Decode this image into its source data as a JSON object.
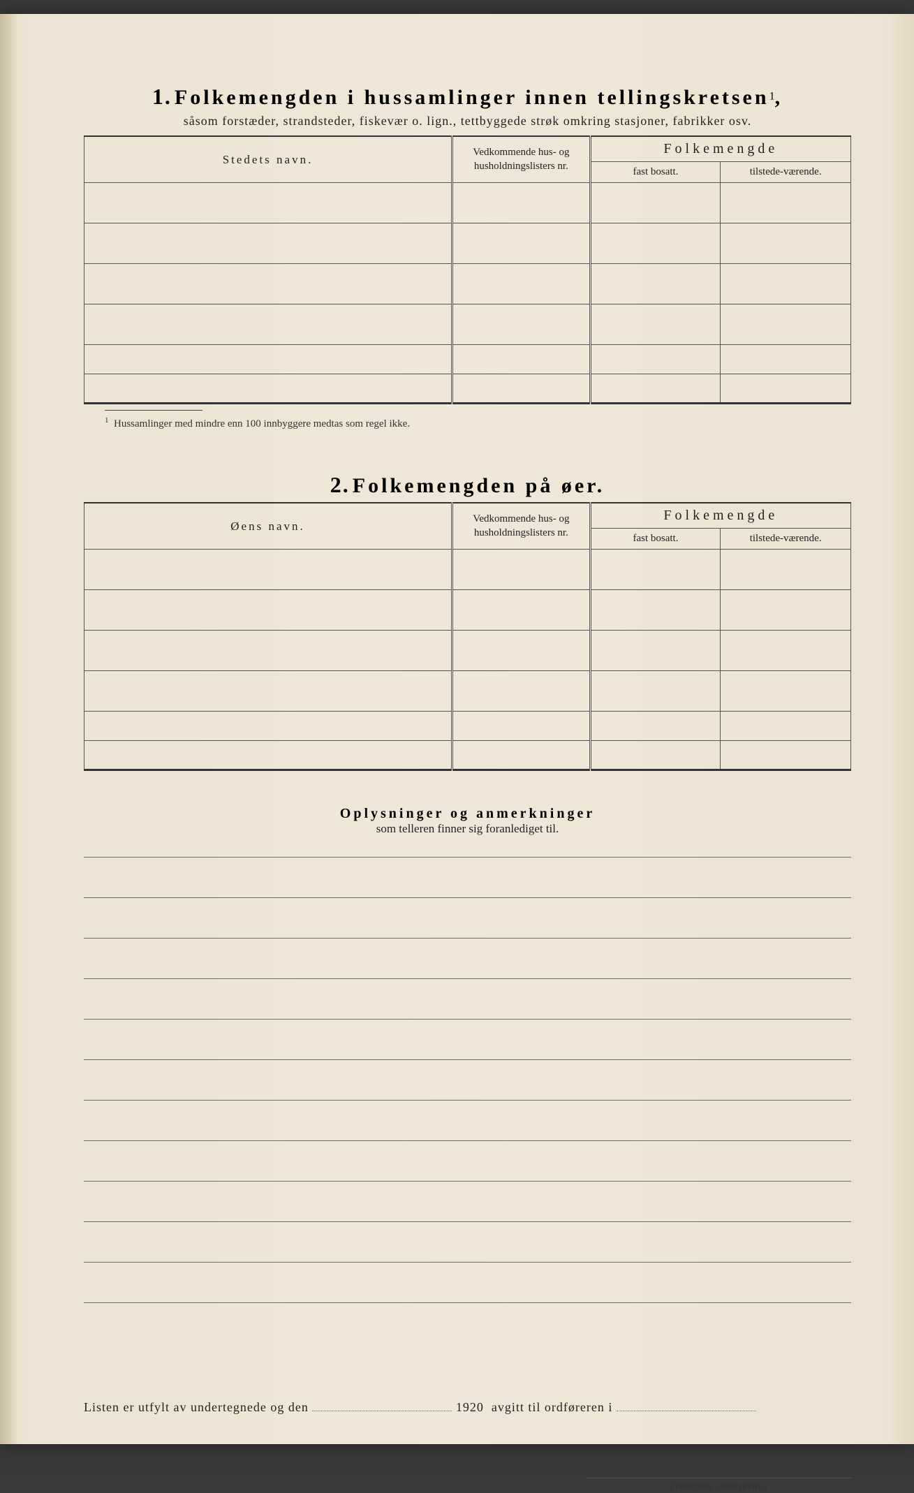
{
  "section1": {
    "number": "1.",
    "title": "Folkemengden i hussamlinger innen tellingskretsen",
    "sup": "1",
    "subtitle": "såsom forstæder, strandsteder, fiskevær o. lign., tettbyggede strøk omkring stasjoner, fabrikker osv.",
    "col_name": "Stedets navn.",
    "col_list": "Vedkommende hus- og husholdningslisters nr.",
    "col_pop_header": "Folkemengde",
    "col_fast": "fast bosatt.",
    "col_tilst": "tilstede-værende.",
    "rows": 6,
    "footnote": "Hussamlinger med mindre enn 100 innbyggere medtas som regel ikke."
  },
  "section2": {
    "number": "2.",
    "title": "Folkemengden på øer.",
    "col_name": "Øens navn.",
    "col_list": "Vedkommende hus- og husholdningslisters nr.",
    "col_pop_header": "Folkemengde",
    "col_fast": "fast bosatt.",
    "col_tilst": "tilstede-værende.",
    "rows": 6
  },
  "notes": {
    "title": "Oplysninger og anmerkninger",
    "subtitle": "som telleren finner sig foranlediget til.",
    "line_count": 12
  },
  "signoff": {
    "prefix": "Listen er utfylt av undertegnede og den",
    "year": "1920",
    "suffix": "avgitt til ordføreren i",
    "sig_label": "(Tellerens underskrift.)"
  },
  "style": {
    "paper_bg": "#f0e7d8",
    "rule_color": "#555555",
    "text_color": "#222222"
  }
}
